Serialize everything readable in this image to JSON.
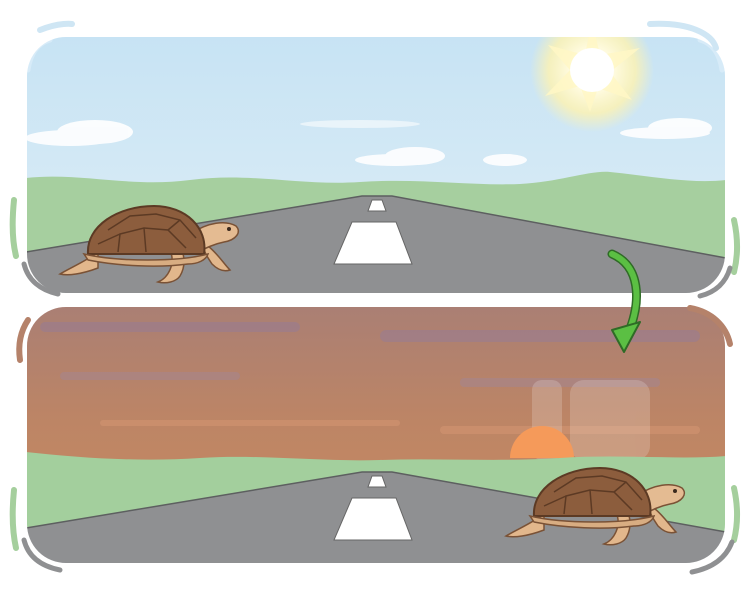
{
  "scene": {
    "panels": [
      {
        "time_of_day": "day",
        "subject": "tortoise-left"
      },
      {
        "time_of_day": "sunset",
        "subject": "tortoise-right"
      }
    ],
    "transition_indicator": "green-curved-arrow",
    "colors": {
      "day_sky": "#c9e3f1",
      "sunset_sky": "#b5826a",
      "grass": "#a7cfa1",
      "road": "#8d8e90",
      "road_marking": "#ffffff",
      "sun_day": "#fff6c8",
      "sun_sunset": "#f39a5d",
      "tortoise_shell": "#8a5b3c",
      "tortoise_skin": "#e3b98e",
      "arrow": "#4caf3e"
    }
  }
}
